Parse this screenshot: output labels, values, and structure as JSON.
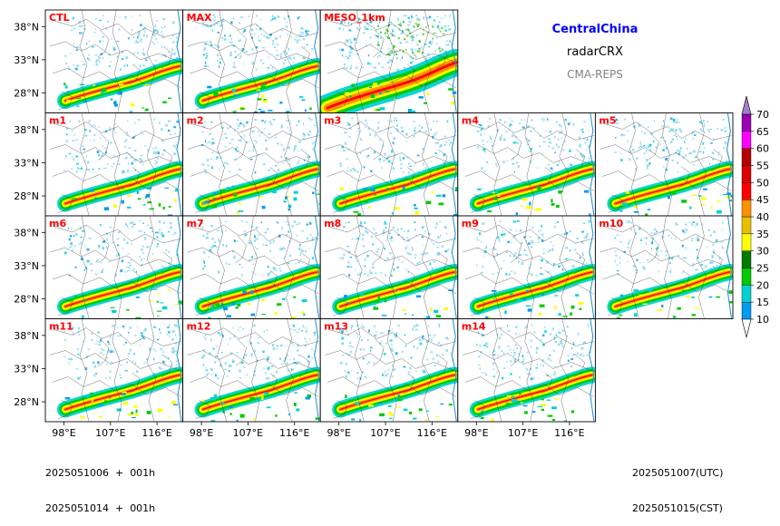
{
  "figure": {
    "region": "CentralChina",
    "product": "radarCRX",
    "system": "CMA-REPS",
    "region_color": "#0000ff",
    "system_color": "#808080",
    "panel_label_color": "#ff0000"
  },
  "chart_data": {
    "type": "heatmap",
    "variable": "radarCRX",
    "panels": [
      "CTL",
      "MAX",
      "MESO_1km",
      "m1",
      "m2",
      "m3",
      "m4",
      "m5",
      "m6",
      "m7",
      "m8",
      "m9",
      "m10",
      "m11",
      "m12",
      "m13",
      "m14"
    ],
    "rows": [
      [
        "CTL",
        "MAX",
        "MESO_1km"
      ],
      [
        "m1",
        "m2",
        "m3",
        "m4",
        "m5"
      ],
      [
        "m6",
        "m7",
        "m8",
        "m9",
        "m10"
      ],
      [
        "m11",
        "m12",
        "m13",
        "m14"
      ]
    ],
    "lat_ticks": [
      "38°N",
      "33°N",
      "28°N"
    ],
    "lat_values": [
      38,
      33,
      28
    ],
    "lon_ticks": [
      "98°E",
      "107°E",
      "116°E"
    ],
    "lon_values": [
      98,
      107,
      116
    ],
    "colorbar": {
      "levels": [
        10,
        15,
        20,
        25,
        30,
        35,
        40,
        45,
        50,
        55,
        60,
        65,
        70
      ],
      "colors": [
        "#009bef",
        "#00d2d2",
        "#00ca00",
        "#007b00",
        "#ffff00",
        "#e8c000",
        "#ff9000",
        "#ff0000",
        "#dd0000",
        "#b60000",
        "#ff00ff",
        "#9b00b4",
        "#9e80c8"
      ],
      "extend": "both",
      "under_color": "#ffffff"
    }
  },
  "footer": {
    "init_utc": "2025051006  +  001h",
    "init_cst": "2025051014  +  001h",
    "valid_utc": "2025051007(UTC)",
    "valid_cst": "2025051015(CST)"
  }
}
